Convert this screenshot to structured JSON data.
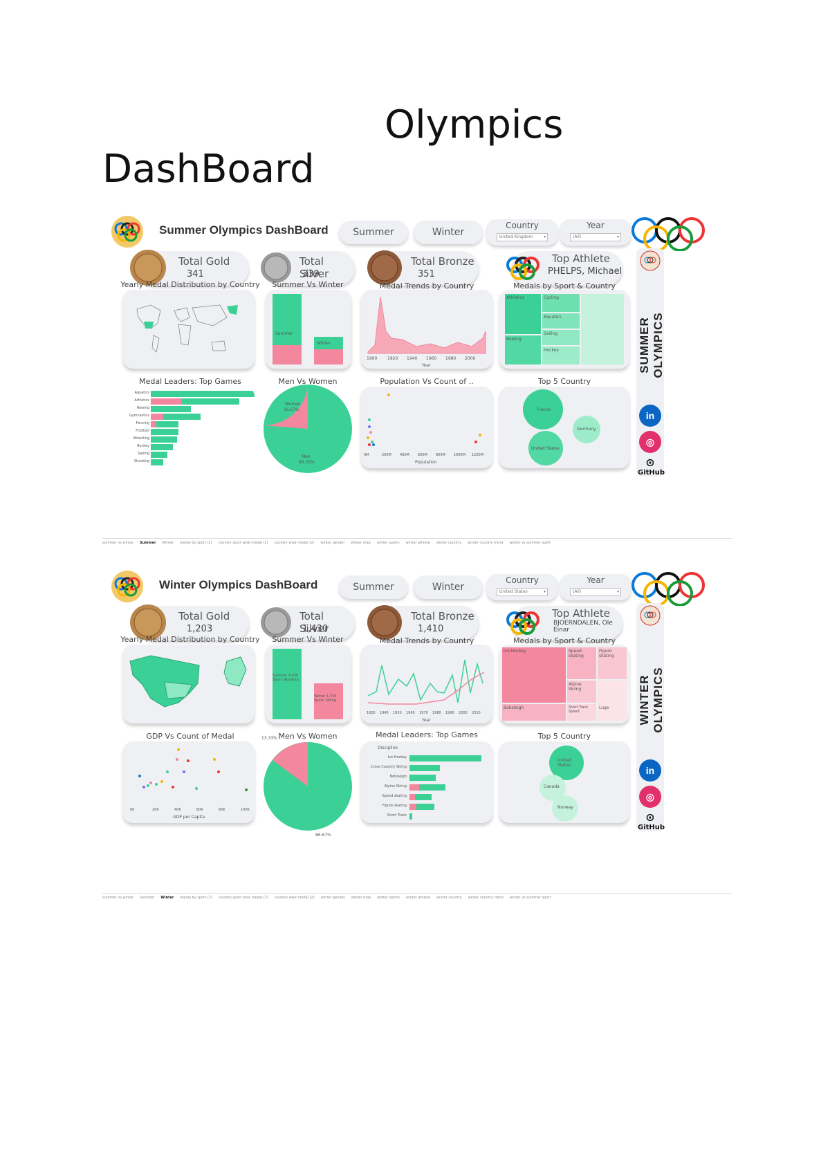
{
  "page": {
    "title_line1": "Olympics",
    "title_line2": "DashBoard"
  },
  "colors": {
    "green": "#3bd196",
    "pink": "#f2879e",
    "panel": "#eef0f3"
  },
  "summer": {
    "title": "Summer Olympics DashBoard",
    "btn_summer": "Summer",
    "btn_winter": "Winter",
    "country_label": "Country",
    "country_value": "United Kingdom",
    "year_label": "Year",
    "year_value": "(All)",
    "gold_label": "Total Gold",
    "gold_value": "341",
    "silver_label": "Total Silver",
    "silver_value": "339",
    "bronze_label": "Total Bronze",
    "bronze_value": "351",
    "athlete_label": "Top Athlete",
    "athlete_value": "PHELPS, Michael",
    "sec_map": "Yearly Medal Distribution by Country",
    "sec_svw": "Summer Vs Winter",
    "sec_trend": "Medal Trends by Country",
    "sec_tree": "Medals by Sport & Country",
    "sec_leaders": "Medal Leaders: Top Games",
    "sec_mvw": "Men Vs Women",
    "sec_pop": "Population Vs Count of ..",
    "sec_top5": "Top 5 Country",
    "svw_summer": "Summer",
    "svw_winter": "Winter",
    "tree": [
      "Athletics",
      "Cycling",
      "Aquatics",
      "Rowing",
      "Sailing",
      "Hockey"
    ],
    "trend_years": [
      "1900",
      "1920",
      "1940",
      "1960",
      "1980",
      "2000"
    ],
    "trend_xlabel": "Year",
    "leaders": [
      "Aquatics",
      "Athletics",
      "Rowing",
      "Gymnastics",
      "Fencing",
      "Football",
      "Wrestling",
      "Hockey",
      "Sailing",
      "Shooting"
    ],
    "pie_women": "Women",
    "pie_women_pct": "16.67%",
    "pie_men": "Men",
    "pie_men_pct": "83.33%",
    "pop_ticks": [
      "0M",
      "200M",
      "400M",
      "600M",
      "800M",
      "1000M",
      "1200M"
    ],
    "pop_xlabel": "Population",
    "top5": [
      "France",
      "Germany",
      "United States"
    ],
    "side_text": "SUMMER OLYMPICS",
    "tabs": [
      "summer vs winter",
      "Summer",
      "Winter",
      "medal by sport (2)",
      "country sport wise medal (2)",
      "country wise medal (2)",
      "winter gender",
      "winter map",
      "winter sports",
      "winter athlete",
      "winter country",
      "winter country trend",
      "winter vs summer sport"
    ]
  },
  "winter": {
    "title": "Winter Olympics DashBoard",
    "btn_summer": "Summer",
    "btn_winter": "Winter",
    "country_label": "Country",
    "country_value": "United States",
    "year_label": "Year",
    "year_value": "(All)",
    "gold_label": "Total Gold",
    "gold_value": "1,203",
    "silver_label": "Total Silver",
    "silver_value": "1,430",
    "bronze_label": "Total Bronze",
    "bronze_value": "1,410",
    "athlete_label": "Top Athlete",
    "athlete_value": "BJOERNDALEN, Ole Einar",
    "sec_map": "Yearly Medal Distribution by Country",
    "sec_svw": "Summer Vs Winter",
    "sec_trend": "Medal Trends by Country",
    "sec_tree": "Medals by Sport & Country",
    "sec_gdp": "GDP Vs Count of Medal",
    "sec_mvw": "Men Vs Women",
    "sec_leaders": "Medal Leaders: Top Games",
    "sec_top5": "Top 5 Country",
    "svw_summer": "Summer 3,430 Sport: Aquatics",
    "svw_winter": "Winter 1,743 Sport: Skiing",
    "tree": [
      "Ice Hockey",
      "Speed skating",
      "Figure skating",
      "Alpine Skiing",
      "Bobsleigh",
      "Short Track Speed",
      "Luge"
    ],
    "trend_years": [
      "1920",
      "1940",
      "1950",
      "1960",
      "1970",
      "1980",
      "1990",
      "2000",
      "2010"
    ],
    "trend_xlabel": "Year",
    "gdp_ticks": [
      "0K",
      "20K",
      "40K",
      "60K",
      "80K",
      "100K"
    ],
    "gdp_xlabel": "GDP per Capita",
    "pie_women_pct": "13.33%",
    "pie_men_pct": "86.67%",
    "leaders_header": "Discipline",
    "leaders": [
      "Ice Hockey",
      "Cross Country Skiing",
      "Bobsleigh",
      "Alpine Skiing",
      "Speed skating",
      "Figure skating",
      "Short Track"
    ],
    "top5": [
      "United States",
      "Canada",
      "Norway"
    ],
    "side_text": "WINTER OLYMPICS",
    "tabs": [
      "summer vs winter",
      "Summer",
      "Winter",
      "medal by sport (2)",
      "country sport wise medal (2)",
      "country wise medal (2)",
      "winter gender",
      "winter map",
      "winter sports",
      "winter athlete",
      "winter country",
      "winter country trend",
      "winter vs summer sport"
    ]
  },
  "social": {
    "linkedin": "in",
    "instagram": "◎",
    "github": "GitHub"
  }
}
